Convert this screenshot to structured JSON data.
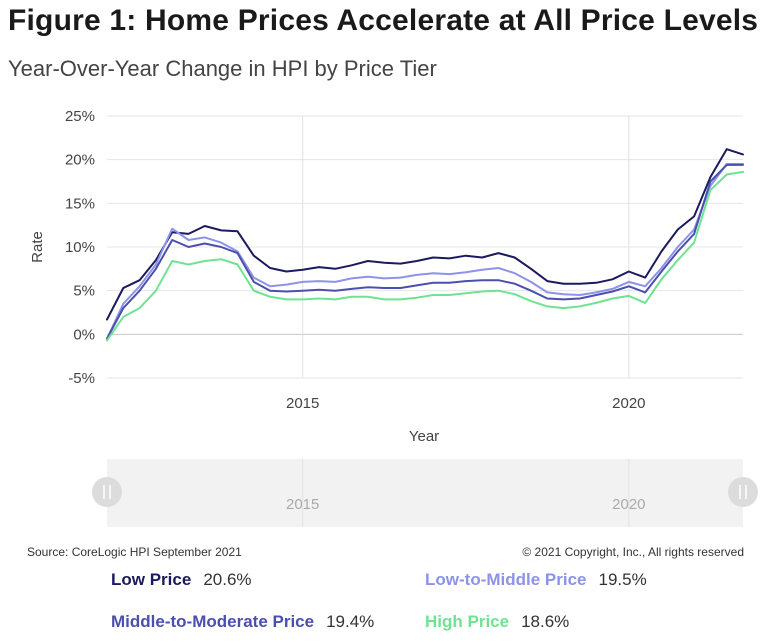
{
  "header": {
    "title": "Figure 1: Home Prices Accelerate at All Price Levels",
    "subtitle": "Year-Over-Year Change in HPI by Price Tier"
  },
  "footer": {
    "source": "Source: CoreLogic HPI September 2021",
    "copyright": "© 2021 Copyright, Inc., All rights reserved"
  },
  "navigator": {
    "tick_labels": [
      "2015",
      "2020"
    ]
  },
  "legend": [
    {
      "name": "Low Price",
      "value": "20.6%",
      "color": "#1c1a5e"
    },
    {
      "name": "Low-to-Middle Price",
      "value": "19.5%",
      "color": "#8c93e8"
    },
    {
      "name": "Middle-to-Moderate Price",
      "value": "19.4%",
      "color": "#4b4fae"
    },
    {
      "name": "High Price",
      "value": "18.6%",
      "color": "#6fe391"
    }
  ],
  "chart_data": {
    "type": "line",
    "xlabel": "Year",
    "ylabel": "Rate",
    "xlim": [
      2012.0,
      2021.75
    ],
    "ylim": [
      -5,
      25
    ],
    "yticks": [
      -5,
      0,
      5,
      10,
      15,
      20,
      25
    ],
    "ytick_labels": [
      "-5%",
      "0%",
      "5%",
      "10%",
      "15%",
      "20%",
      "25%"
    ],
    "xticks": [
      2015,
      2020
    ],
    "xtick_labels": [
      "2015",
      "2020"
    ],
    "grid": true,
    "x": [
      2012.0,
      2012.25,
      2012.5,
      2012.75,
      2013.0,
      2013.25,
      2013.5,
      2013.75,
      2014.0,
      2014.25,
      2014.5,
      2014.75,
      2015.0,
      2015.25,
      2015.5,
      2015.75,
      2016.0,
      2016.25,
      2016.5,
      2016.75,
      2017.0,
      2017.25,
      2017.5,
      2017.75,
      2018.0,
      2018.25,
      2018.5,
      2018.75,
      2019.0,
      2019.25,
      2019.5,
      2019.75,
      2020.0,
      2020.25,
      2020.5,
      2020.75,
      2021.0,
      2021.25,
      2021.5,
      2021.75
    ],
    "series": [
      {
        "name": "Low Price",
        "color": "#1c1a5e",
        "values": [
          1.7,
          5.3,
          6.2,
          8.5,
          11.7,
          11.5,
          12.4,
          11.9,
          11.8,
          9.0,
          7.6,
          7.2,
          7.4,
          7.7,
          7.5,
          7.9,
          8.4,
          8.2,
          8.1,
          8.4,
          8.8,
          8.7,
          9.0,
          8.8,
          9.3,
          8.8,
          7.5,
          6.1,
          5.8,
          5.8,
          5.9,
          6.3,
          7.2,
          6.5,
          9.5,
          12.0,
          13.5,
          18.0,
          21.2,
          20.6
        ]
      },
      {
        "name": "Low-to-Middle Price",
        "color": "#8c93e8",
        "values": [
          -0.5,
          3.5,
          5.5,
          8.0,
          12.1,
          10.8,
          11.1,
          10.5,
          9.5,
          6.5,
          5.5,
          5.7,
          6.0,
          6.1,
          6.0,
          6.4,
          6.6,
          6.4,
          6.5,
          6.8,
          7.0,
          6.9,
          7.1,
          7.4,
          7.6,
          7.0,
          6.0,
          4.8,
          4.6,
          4.5,
          4.8,
          5.2,
          6.0,
          5.5,
          7.6,
          10.0,
          12.0,
          17.0,
          19.5,
          19.5
        ]
      },
      {
        "name": "Middle-to-Moderate Price",
        "color": "#4b4fae",
        "values": [
          -0.5,
          3.0,
          5.0,
          7.5,
          10.8,
          10.0,
          10.4,
          10.0,
          9.3,
          6.0,
          5.0,
          4.9,
          5.0,
          5.1,
          5.0,
          5.2,
          5.4,
          5.3,
          5.3,
          5.6,
          5.9,
          5.9,
          6.1,
          6.2,
          6.2,
          5.8,
          5.0,
          4.1,
          4.0,
          4.1,
          4.5,
          4.9,
          5.5,
          4.8,
          7.2,
          9.5,
          11.5,
          17.5,
          19.4,
          19.4
        ]
      },
      {
        "name": "High Price",
        "color": "#6fe391",
        "values": [
          -0.7,
          2.0,
          3.0,
          5.0,
          8.4,
          8.0,
          8.4,
          8.6,
          8.0,
          5.0,
          4.3,
          4.0,
          4.0,
          4.1,
          4.0,
          4.3,
          4.3,
          4.0,
          4.0,
          4.2,
          4.5,
          4.5,
          4.7,
          4.9,
          5.0,
          4.6,
          3.8,
          3.2,
          3.0,
          3.2,
          3.6,
          4.1,
          4.4,
          3.6,
          6.3,
          8.5,
          10.5,
          16.5,
          18.3,
          18.6
        ]
      }
    ]
  }
}
